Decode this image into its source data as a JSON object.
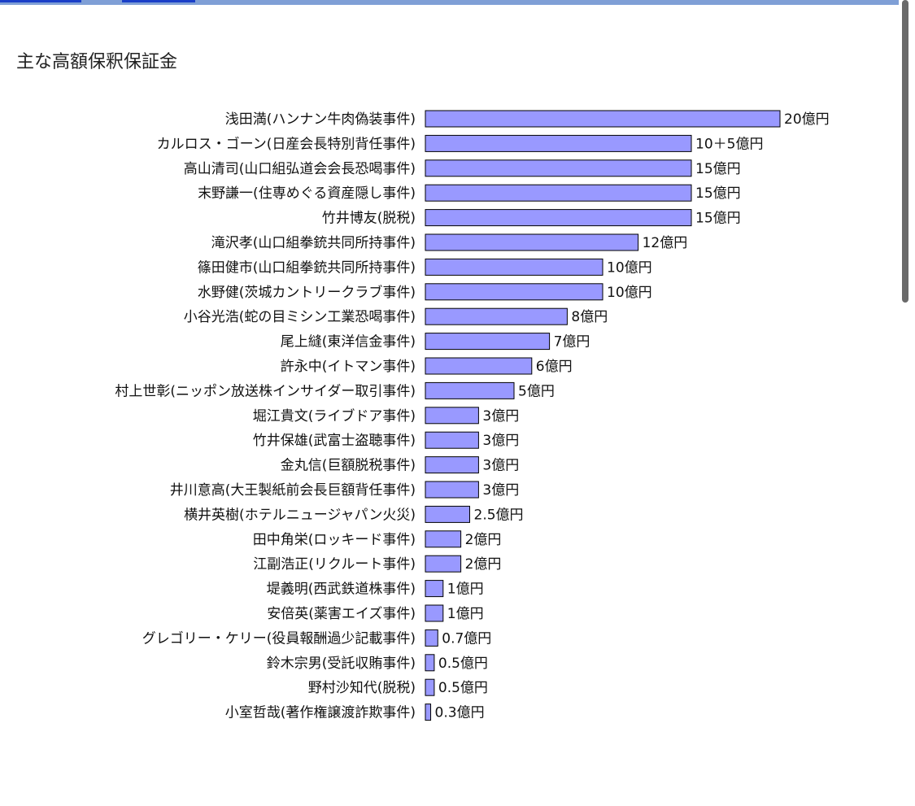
{
  "page": {
    "title": "主な高額保釈保証金"
  },
  "colors": {
    "bar_fill": "#9999ff",
    "bar_stroke": "#000000",
    "topbar": "#7f9fd6",
    "scrollbar_thumb": "#6a6a6a"
  },
  "chart_data": {
    "type": "bar",
    "orientation": "horizontal",
    "title": "主な高額保釈保証金",
    "xlabel": "",
    "ylabel": "",
    "unit": "億円",
    "xlim": [
      0,
      20
    ],
    "grid": false,
    "legend": "none",
    "categories": [
      "浅田満(ハンナン牛肉偽装事件)",
      "カルロス・ゴーン(日産会長特別背任事件)",
      "高山清司(山口組弘道会会長恐喝事件)",
      "末野謙一(住専めぐる資産隠し事件)",
      "竹井博友(脱税)",
      "滝沢孝(山口組拳銃共同所持事件)",
      "篠田健市(山口組拳銃共同所持事件)",
      "水野健(茨城カントリークラブ事件)",
      "小谷光浩(蛇の目ミシン工業恐喝事件)",
      "尾上縫(東洋信金事件)",
      "許永中(イトマン事件)",
      "村上世彰(ニッポン放送株インサイダー取引事件)",
      "堀江貴文(ライブドア事件)",
      "竹井保雄(武富士盗聴事件)",
      "金丸信(巨額脱税事件)",
      "井川意高(大王製紙前会長巨額背任事件)",
      "横井英樹(ホテルニュージャパン火災)",
      "田中角栄(ロッキード事件)",
      "江副浩正(リクルート事件)",
      "堤義明(西武鉄道株事件)",
      "安倍英(薬害エイズ事件)",
      "グレゴリー・ケリー(役員報酬過少記載事件)",
      "鈴木宗男(受託収賄事件)",
      "野村沙知代(脱税)",
      "小室哲哉(著作権譲渡詐欺事件)"
    ],
    "values": [
      20,
      15,
      15,
      15,
      15,
      12,
      10,
      10,
      8,
      7,
      6,
      5,
      3,
      3,
      3,
      3,
      2.5,
      2,
      2,
      1,
      1,
      0.7,
      0.5,
      0.5,
      0.3
    ],
    "value_labels": [
      "20億円",
      "10＋5億円",
      "15億円",
      "15億円",
      "15億円",
      "12億円",
      "10億円",
      "10億円",
      "8億円",
      "7億円",
      "6億円",
      "5億円",
      "3億円",
      "3億円",
      "3億円",
      "3億円",
      "2.5億円",
      "2億円",
      "2億円",
      "1億円",
      "1億円",
      "0.7億円",
      "0.5億円",
      "0.5億円",
      "0.3億円"
    ]
  }
}
